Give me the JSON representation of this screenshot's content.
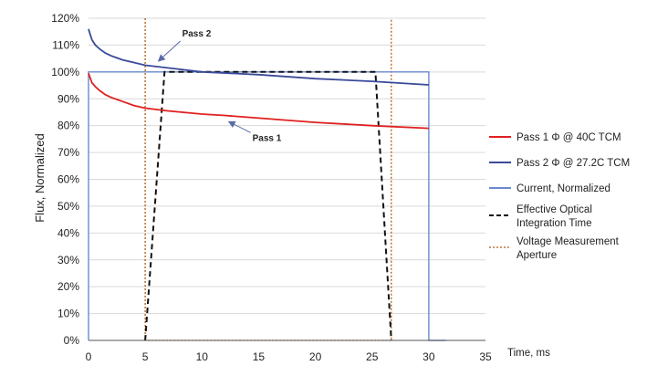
{
  "chart_data": {
    "type": "line",
    "title": "",
    "xlabel": "Time, ms",
    "ylabel": "Flux, Normalized",
    "xlim": [
      0,
      35
    ],
    "ylim": [
      0,
      1.2
    ],
    "x_ticks": [
      0,
      5,
      10,
      15,
      20,
      25,
      30,
      35
    ],
    "y_ticks": [
      0,
      0.1,
      0.2,
      0.3,
      0.4,
      0.5,
      0.6,
      0.7,
      0.8,
      0.9,
      1.0,
      1.1,
      1.2
    ],
    "x_tick_labels": [
      "0",
      "5",
      "10",
      "15",
      "20",
      "25",
      "30",
      "35"
    ],
    "y_tick_labels": [
      "0%",
      "10%",
      "20%",
      "30%",
      "40%",
      "50%",
      "60%",
      "70%",
      "80%",
      "90%",
      "100%",
      "110%",
      "120%"
    ],
    "grid": "horizontal",
    "legend_position": "right",
    "series": [
      {
        "name": "Pass 1 Φ @ 40C TCM",
        "color": "#e02020",
        "style": "solid",
        "x": [
          0,
          0.3,
          0.6,
          1,
          1.5,
          2,
          3,
          4,
          5,
          7,
          10,
          12,
          15,
          20,
          25,
          30
        ],
        "y": [
          0.995,
          0.96,
          0.945,
          0.93,
          0.915,
          0.905,
          0.89,
          0.875,
          0.865,
          0.855,
          0.843,
          0.838,
          0.828,
          0.812,
          0.8,
          0.79
        ]
      },
      {
        "name": "Pass 2 Φ @ 27.2C TCM",
        "color": "#3a4a9a",
        "style": "solid",
        "x": [
          0,
          0.3,
          0.6,
          1,
          1.5,
          2,
          3,
          4,
          5,
          7,
          10,
          15,
          20,
          25,
          30
        ],
        "y": [
          1.16,
          1.12,
          1.1,
          1.085,
          1.07,
          1.06,
          1.045,
          1.035,
          1.025,
          1.015,
          1.0,
          0.99,
          0.975,
          0.965,
          0.952
        ]
      },
      {
        "name": "Current, Normalized",
        "color": "#6a8ad0",
        "style": "solid",
        "x": [
          0,
          0,
          30,
          30,
          31.5
        ],
        "y": [
          0,
          1.0,
          1.0,
          0,
          0
        ]
      },
      {
        "name": "Effective Optical Integration Time",
        "color": "#111111",
        "style": "dash",
        "x": [
          5,
          6.7,
          25.3,
          26.7
        ],
        "y": [
          0,
          1.0,
          1.0,
          0
        ]
      },
      {
        "name": "Voltage Measurement Aperture",
        "color": "#b05a10",
        "style": "dot",
        "x": [
          5,
          5,
          26.7,
          26.7
        ],
        "y": [
          1.2,
          0,
          0,
          1.2
        ]
      }
    ],
    "annotations": [
      {
        "text": "Pass 2",
        "arrow_to": [
          6,
          1.03
        ]
      },
      {
        "text": "Pass 1",
        "arrow_to": [
          12.2,
          0.825
        ]
      }
    ]
  }
}
